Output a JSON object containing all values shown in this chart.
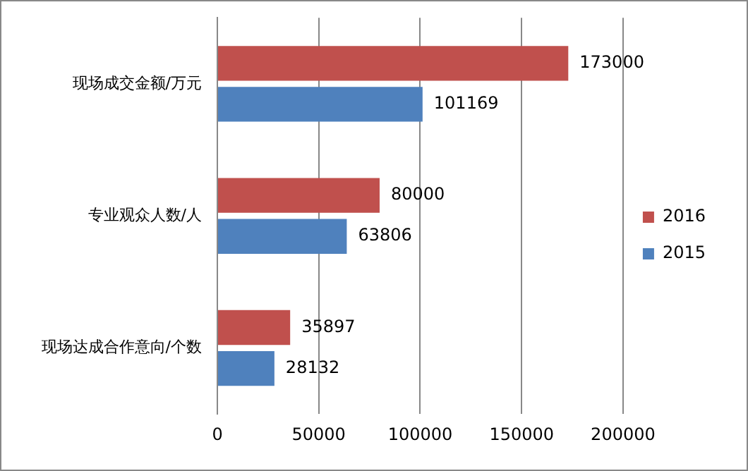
{
  "chart_data": {
    "type": "bar",
    "orientation": "horizontal",
    "categories": [
      "现场成交金额/万元",
      "专业观众人数/人",
      "现场达成合作意向/个数"
    ],
    "series": [
      {
        "name": "2016",
        "color": "#c0504d",
        "values": [
          173000,
          80000,
          35897
        ]
      },
      {
        "name": "2015",
        "color": "#4f81bd",
        "values": [
          101169,
          63806,
          28132
        ]
      }
    ],
    "xlim": [
      0,
      200000
    ],
    "xticks": [
      0,
      50000,
      100000,
      150000,
      200000
    ],
    "grid": "x",
    "legend": "right",
    "data_labels": true
  }
}
